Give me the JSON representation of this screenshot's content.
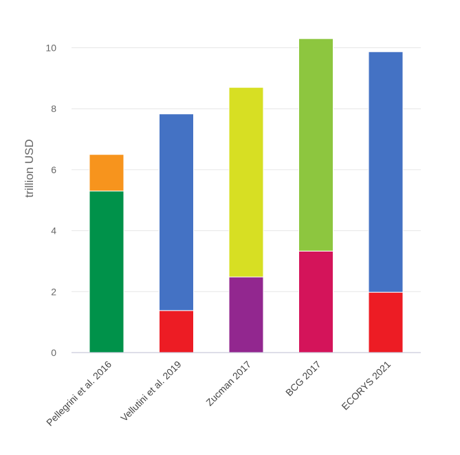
{
  "chart_data": {
    "type": "bar",
    "stacked": true,
    "categories": [
      "Pellegrini et al. 2016",
      "Vellutini et al. 2019",
      "Zucman 2017",
      "BCG 2017",
      "ECORYS 2021"
    ],
    "ylabel": "trillion USD",
    "ylim": [
      0,
      10.3
    ],
    "yticks": [
      "0",
      "2",
      "4",
      "6",
      "8",
      "10"
    ],
    "ytick_values": [
      0,
      2,
      4,
      6,
      8,
      10
    ],
    "grid": true,
    "legend": "none",
    "bars": [
      {
        "category": "Pellegrini et al. 2016",
        "segments": [
          {
            "value": 5.3,
            "color": "#00924a"
          },
          {
            "value": 1.2,
            "color": "#f7941d"
          }
        ]
      },
      {
        "category": "Vellutini et al. 2019",
        "segments": [
          {
            "value": 1.38,
            "color": "#ed1c24"
          },
          {
            "value": 6.45,
            "color": "#4472c4"
          }
        ]
      },
      {
        "category": "Zucman 2017",
        "segments": [
          {
            "value": 2.48,
            "color": "#92278f"
          },
          {
            "value": 6.22,
            "color": "#d7df23"
          }
        ]
      },
      {
        "category": "BCG 2017",
        "segments": [
          {
            "value": 3.33,
            "color": "#d4145a"
          },
          {
            "value": 6.97,
            "color": "#8dc63f"
          }
        ]
      },
      {
        "category": "ECORYS 2021",
        "segments": [
          {
            "value": 1.98,
            "color": "#ed1c24"
          },
          {
            "value": 7.89,
            "color": "#4472c4"
          }
        ]
      }
    ]
  }
}
